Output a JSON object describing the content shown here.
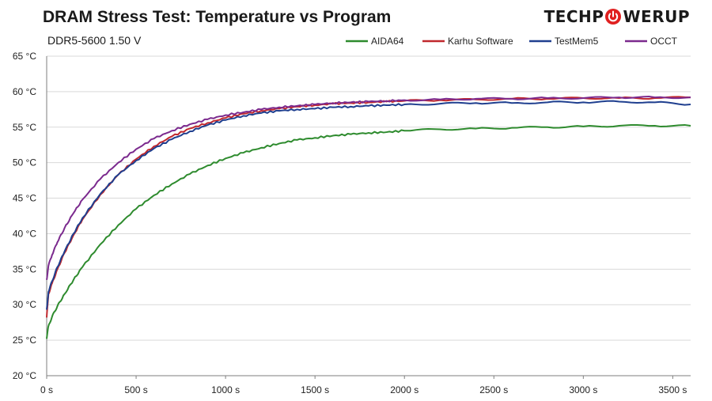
{
  "header": {
    "title": "DRAM Stress Test: Temperature vs Program",
    "subtitle": "DDR5-5600 1.50 V",
    "logo_left": "TECHP",
    "logo_right": "WERUP",
    "logo_icon": "power-icon"
  },
  "colors": {
    "grid": "#d9d9d9",
    "axis": "#7f7f7f",
    "logo_accent": "#e02020"
  },
  "chart_data": {
    "type": "line",
    "title": "DRAM Stress Test: Temperature vs Program",
    "subtitle": "DDR5-5600 1.50 V",
    "xlabel": "",
    "ylabel": "",
    "xlim": [
      0,
      3600
    ],
    "ylim": [
      20,
      65
    ],
    "grid": true,
    "legend_position": "top-right",
    "x_ticks": [
      0,
      500,
      1000,
      1500,
      2000,
      2500,
      3000,
      3500
    ],
    "x_tick_labels": [
      "0 s",
      "500 s",
      "1000 s",
      "1500 s",
      "2000 s",
      "2500 s",
      "3000 s",
      "3500 s"
    ],
    "y_ticks": [
      20,
      25,
      30,
      35,
      40,
      45,
      50,
      55,
      60,
      65
    ],
    "y_tick_labels": [
      "20 °C",
      "25 °C",
      "30 °C",
      "35 °C",
      "40 °C",
      "45 °C",
      "50 °C",
      "55 °C",
      "60 °C",
      "65 °C"
    ],
    "series": [
      {
        "name": "AIDA64",
        "color": "#2e8b2e",
        "x": [
          0,
          10,
          30,
          60,
          100,
          150,
          200,
          300,
          400,
          500,
          600,
          700,
          800,
          900,
          1000,
          1100,
          1200,
          1300,
          1400,
          1500,
          1600,
          1700,
          1800,
          1900,
          2000,
          2200,
          2400,
          2600,
          2800,
          3000,
          3200,
          3400,
          3600
        ],
        "y": [
          25.2,
          27.0,
          28.3,
          29.8,
          31.5,
          33.5,
          35.3,
          38.5,
          41.2,
          43.5,
          45.4,
          47.0,
          48.4,
          49.6,
          50.6,
          51.4,
          52.1,
          52.7,
          53.2,
          53.5,
          53.8,
          54.0,
          54.2,
          54.3,
          54.5,
          54.7,
          54.8,
          54.9,
          55.0,
          55.1,
          55.2,
          55.2,
          55.2
        ]
      },
      {
        "name": "Karhu Software",
        "color": "#c0282d",
        "x": [
          0,
          10,
          30,
          60,
          100,
          150,
          200,
          300,
          400,
          500,
          600,
          700,
          800,
          900,
          1000,
          1100,
          1200,
          1300,
          1400,
          1500,
          1600,
          1700,
          1800,
          1900,
          2000,
          2200,
          2400,
          2600,
          2800,
          3000,
          3200,
          3400,
          3600
        ],
        "y": [
          28.2,
          31.5,
          33.0,
          35.0,
          37.3,
          39.8,
          42.0,
          45.5,
          48.3,
          50.5,
          52.3,
          53.7,
          54.8,
          55.6,
          56.3,
          56.9,
          57.3,
          57.6,
          57.9,
          58.1,
          58.3,
          58.4,
          58.5,
          58.6,
          58.7,
          58.8,
          58.9,
          59.0,
          59.0,
          59.1,
          59.1,
          59.1,
          59.2
        ]
      },
      {
        "name": "TestMem5",
        "color": "#1f3f8f",
        "x": [
          0,
          10,
          30,
          60,
          100,
          150,
          200,
          300,
          400,
          500,
          600,
          700,
          800,
          900,
          1000,
          1100,
          1200,
          1300,
          1400,
          1500,
          1600,
          1700,
          1800,
          1900,
          2000,
          2200,
          2400,
          2600,
          2800,
          3000,
          3200,
          3400,
          3600
        ],
        "y": [
          29.3,
          31.8,
          33.3,
          35.3,
          37.5,
          40.0,
          42.2,
          45.6,
          48.3,
          50.3,
          52.0,
          53.3,
          54.4,
          55.3,
          56.0,
          56.6,
          57.0,
          57.3,
          57.5,
          57.6,
          57.8,
          57.9,
          58.0,
          58.1,
          58.2,
          58.3,
          58.4,
          58.4,
          58.5,
          58.5,
          58.6,
          58.5,
          58.2
        ]
      },
      {
        "name": "OCCT",
        "color": "#7b2a8e",
        "x": [
          0,
          10,
          30,
          60,
          100,
          150,
          200,
          300,
          400,
          500,
          600,
          700,
          800,
          900,
          1000,
          1100,
          1200,
          1300,
          1400,
          1500,
          1600,
          1700,
          1800,
          1900,
          2000,
          2200,
          2400,
          2600,
          2800,
          3000,
          3200,
          3400,
          3600
        ],
        "y": [
          33.5,
          35.5,
          37.0,
          38.8,
          40.8,
          42.9,
          44.8,
          47.7,
          50.0,
          51.9,
          53.4,
          54.5,
          55.4,
          56.1,
          56.7,
          57.1,
          57.5,
          57.8,
          58.0,
          58.2,
          58.4,
          58.5,
          58.6,
          58.7,
          58.8,
          58.9,
          59.0,
          59.0,
          59.1,
          59.1,
          59.2,
          59.2,
          59.2
        ]
      }
    ]
  }
}
